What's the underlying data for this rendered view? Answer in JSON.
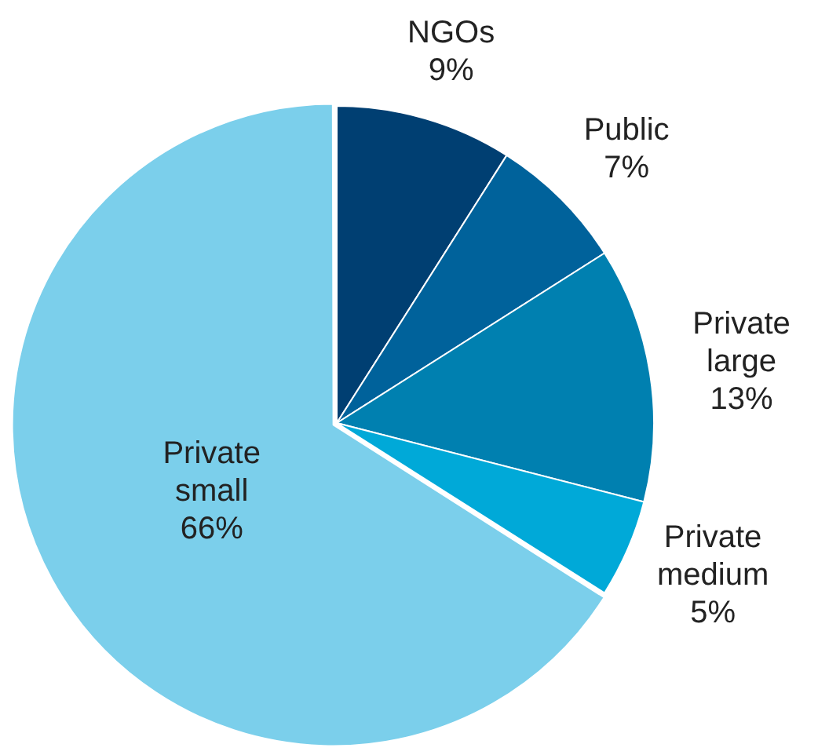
{
  "chart_data": {
    "type": "pie",
    "categories": [
      "NGOs",
      "Public",
      "Private large",
      "Private medium",
      "Private small"
    ],
    "values": [
      9,
      7,
      13,
      5,
      66
    ],
    "colors": [
      "#003f72",
      "#00629b",
      "#0080b0",
      "#00a9d8",
      "#7bcfeb"
    ],
    "value_labels": [
      "9%",
      "7%",
      "13%",
      "5%",
      "66%"
    ],
    "legend": false
  }
}
